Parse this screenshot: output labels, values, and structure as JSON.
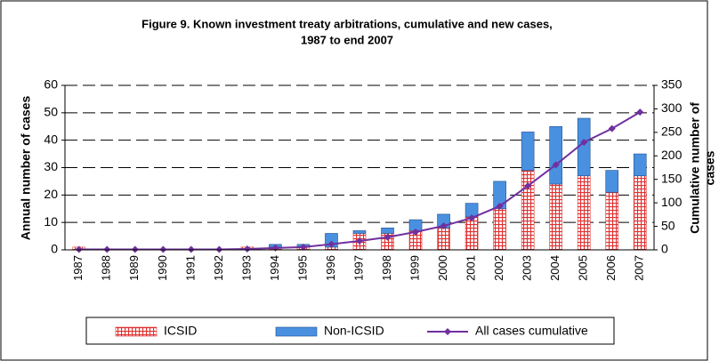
{
  "chart_data": {
    "type": "bar-line",
    "title": [
      "Figure 9. Known investment treaty arbitrations, cumulative and new cases,",
      "1987 to end 2007"
    ],
    "y_label": "Annual number of cases",
    "y2_label": [
      "Cumulative number of",
      "cases"
    ],
    "categories": [
      "1987",
      "1988",
      "1989",
      "1990",
      "1991",
      "1992",
      "1993",
      "1994",
      "1995",
      "1996",
      "1997",
      "1998",
      "1999",
      "2000",
      "2001",
      "2002",
      "2003",
      "2004",
      "2005",
      "2006",
      "2007"
    ],
    "series": [
      {
        "name": "ICSID",
        "color": "#e03030",
        "type": "bar",
        "values": [
          1,
          0,
          0,
          0,
          0,
          0,
          1,
          1,
          1,
          1,
          6,
          6,
          7,
          8,
          12,
          15,
          29,
          24,
          27,
          21,
          27
        ]
      },
      {
        "name": "Non-ICSID",
        "color": "#4a90e0",
        "type": "bar",
        "values": [
          0,
          0,
          0,
          0,
          0,
          0,
          0,
          1,
          1,
          5,
          1,
          2,
          4,
          5,
          5,
          10,
          14,
          21,
          21,
          8,
          8
        ]
      },
      {
        "name": "All cases cumulative",
        "color": "#7030a0",
        "type": "line",
        "axis": "y2",
        "values": [
          1,
          1,
          1,
          1,
          1,
          1,
          2,
          4,
          6,
          12,
          19,
          27,
          38,
          51,
          68,
          93,
          136,
          181,
          229,
          258,
          293
        ]
      }
    ],
    "ylim": [
      0,
      60
    ],
    "yticks": [
      0,
      10,
      20,
      30,
      40,
      50,
      60
    ],
    "y2lim": [
      0,
      350
    ],
    "y2ticks": [
      0,
      50,
      100,
      150,
      200,
      250,
      300,
      350
    ],
    "grid": true
  }
}
